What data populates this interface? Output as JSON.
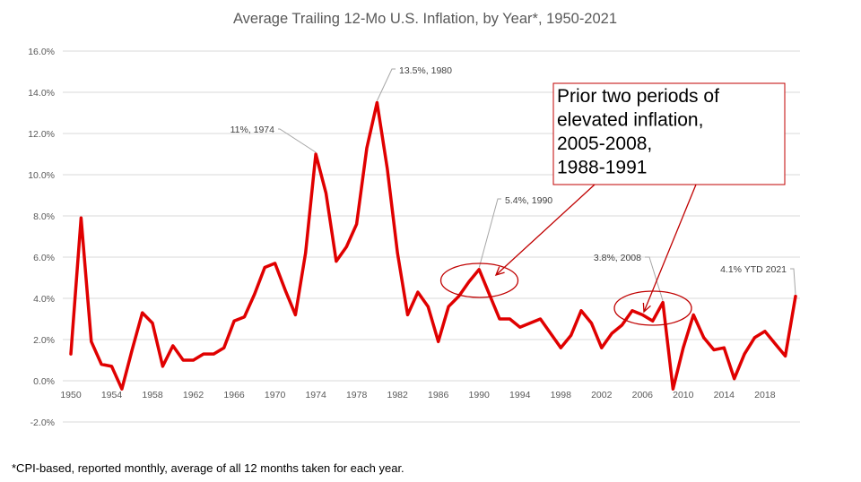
{
  "chart_data": {
    "type": "line",
    "title": "Average Trailing 12-Mo U.S. Inflation, by Year*, 1950-2021",
    "xlabel": "",
    "ylabel": "",
    "ylim": [
      -2.0,
      16.0
    ],
    "ytick_step": 2.0,
    "yticks": [
      "-2.0%",
      "0.0%",
      "2.0%",
      "4.0%",
      "6.0%",
      "8.0%",
      "10.0%",
      "12.0%",
      "14.0%",
      "16.0%"
    ],
    "xticks": [
      1950,
      1954,
      1958,
      1962,
      1966,
      1970,
      1974,
      1978,
      1982,
      1986,
      1990,
      1994,
      1998,
      2002,
      2006,
      2010,
      2014,
      2018
    ],
    "x_range": [
      1950,
      2021
    ],
    "grid": true,
    "legend": "none",
    "series": [
      {
        "name": "Average Trailing 12-Mo Inflation (%)",
        "color": "#e00000",
        "x": [
          1950,
          1951,
          1952,
          1953,
          1954,
          1955,
          1956,
          1957,
          1958,
          1959,
          1960,
          1961,
          1962,
          1963,
          1964,
          1965,
          1966,
          1967,
          1968,
          1969,
          1970,
          1971,
          1972,
          1973,
          1974,
          1975,
          1976,
          1977,
          1978,
          1979,
          1980,
          1981,
          1982,
          1983,
          1984,
          1985,
          1986,
          1987,
          1988,
          1989,
          1990,
          1991,
          1992,
          1993,
          1994,
          1995,
          1996,
          1997,
          1998,
          1999,
          2000,
          2001,
          2002,
          2003,
          2004,
          2005,
          2006,
          2007,
          2008,
          2009,
          2010,
          2011,
          2012,
          2013,
          2014,
          2015,
          2016,
          2017,
          2018,
          2019,
          2020,
          2021
        ],
        "values": [
          1.3,
          7.9,
          1.9,
          0.8,
          0.7,
          -0.4,
          1.5,
          3.3,
          2.8,
          0.7,
          1.7,
          1.0,
          1.0,
          1.3,
          1.3,
          1.6,
          2.9,
          3.1,
          4.2,
          5.5,
          5.7,
          4.4,
          3.2,
          6.2,
          11.0,
          9.1,
          5.8,
          6.5,
          7.6,
          11.3,
          13.5,
          10.3,
          6.2,
          3.2,
          4.3,
          3.6,
          1.9,
          3.6,
          4.1,
          4.8,
          5.4,
          4.2,
          3.0,
          3.0,
          2.6,
          2.8,
          3.0,
          2.3,
          1.6,
          2.2,
          3.4,
          2.8,
          1.6,
          2.3,
          2.7,
          3.4,
          3.2,
          2.9,
          3.8,
          -0.4,
          1.6,
          3.2,
          2.1,
          1.5,
          1.6,
          0.1,
          1.3,
          2.1,
          2.4,
          1.8,
          1.2,
          4.1
        ]
      }
    ],
    "annotations": [
      {
        "text": "11%, 1974",
        "x": 1974,
        "y": 11.0
      },
      {
        "text": "13.5%, 1980",
        "x": 1980,
        "y": 13.5
      },
      {
        "text": "5.4%, 1990",
        "x": 1990,
        "y": 5.4
      },
      {
        "text": "3.8%, 2008",
        "x": 2008,
        "y": 3.8
      },
      {
        "text": "4.1% YTD 2021",
        "x": 2021,
        "y": 4.1
      }
    ],
    "callout": {
      "lines": [
        "Prior two periods of",
        "elevated inflation,",
        "2005-2008,",
        "1988-1991"
      ],
      "highlight_periods": [
        [
          1988,
          1991
        ],
        [
          2005,
          2008
        ]
      ]
    }
  },
  "footnote": "*CPI-based, reported monthly, average of all 12 months taken for each year."
}
